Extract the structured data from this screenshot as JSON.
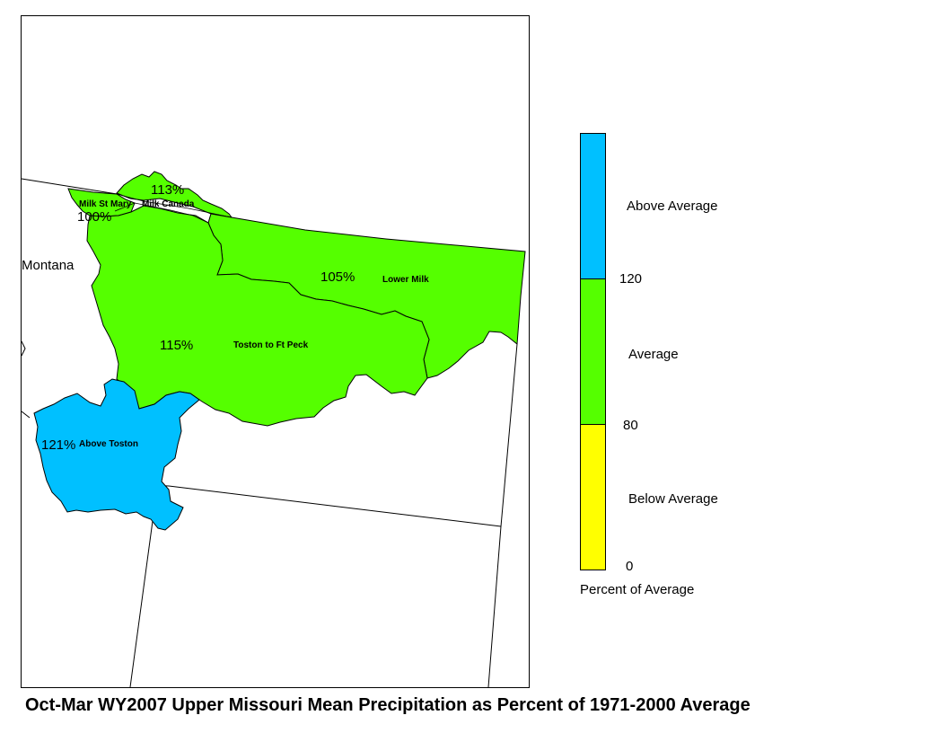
{
  "title": "Oct-Mar WY2007 Upper Missouri Mean Precipitation as Percent of 1971-2000 Average",
  "state_label": "Montana",
  "colors": {
    "above_average": "#00c0ff",
    "average": "#55ff00",
    "below_average": "#ffff00"
  },
  "basins": [
    {
      "name": "Milk St Mary",
      "percent": "100%",
      "category": "average"
    },
    {
      "name": "Milk Canada",
      "percent": "113%",
      "category": "average"
    },
    {
      "name": "Lower Milk",
      "percent": "105%",
      "category": "average"
    },
    {
      "name": "Toston to Ft Peck",
      "percent": "115%",
      "category": "average"
    },
    {
      "name": "Above Toston",
      "percent": "121%",
      "category": "above_average"
    }
  ],
  "legend": {
    "categories": [
      "Above Average",
      "Average",
      "Below Average"
    ],
    "breaks": [
      "120",
      "80",
      "0"
    ],
    "title": "Percent of Average"
  }
}
